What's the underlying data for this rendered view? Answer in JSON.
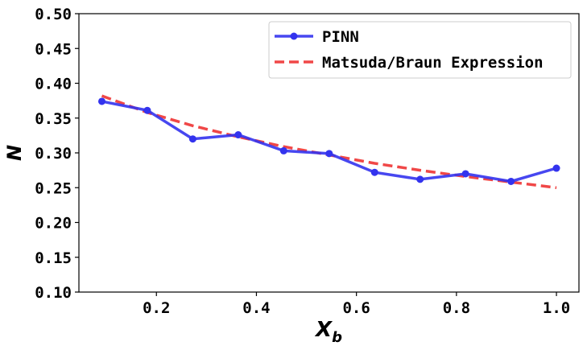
{
  "chart_data": {
    "type": "line",
    "xlabel": "X",
    "xlabel_sub": "b",
    "ylabel": "N",
    "xlim": [
      0.045,
      1.045
    ],
    "ylim": [
      0.1,
      0.5
    ],
    "xticks": [
      0.2,
      0.4,
      0.6,
      0.8,
      1.0
    ],
    "xtick_labels": [
      "0.2",
      "0.4",
      "0.6",
      "0.8",
      "1.0"
    ],
    "yticks": [
      0.1,
      0.15,
      0.2,
      0.25,
      0.3,
      0.35,
      0.4,
      0.45,
      0.5
    ],
    "ytick_labels": [
      "0.10",
      "0.15",
      "0.20",
      "0.25",
      "0.30",
      "0.35",
      "0.40",
      "0.45",
      "0.50"
    ],
    "legend_position": "top-right",
    "grid": false,
    "series": [
      {
        "name": "PINN",
        "style": "solid-with-markers",
        "color": "#3333ee",
        "x": [
          0.0909,
          0.1818,
          0.2727,
          0.3636,
          0.4545,
          0.5455,
          0.6364,
          0.7273,
          0.8182,
          0.9091,
          1.0
        ],
        "y": [
          0.374,
          0.361,
          0.32,
          0.326,
          0.303,
          0.299,
          0.272,
          0.262,
          0.27,
          0.259,
          0.278
        ]
      },
      {
        "name": "Matsuda/Braun Expression",
        "style": "dashed",
        "color": "#ee3333",
        "x": [
          0.0909,
          0.1818,
          0.2727,
          0.3636,
          0.4545,
          0.5455,
          0.6364,
          0.7273,
          0.8182,
          0.9091,
          1.0
        ],
        "y": [
          0.382,
          0.358,
          0.339,
          0.323,
          0.309,
          0.297,
          0.285,
          0.275,
          0.266,
          0.258,
          0.25
        ]
      }
    ]
  }
}
